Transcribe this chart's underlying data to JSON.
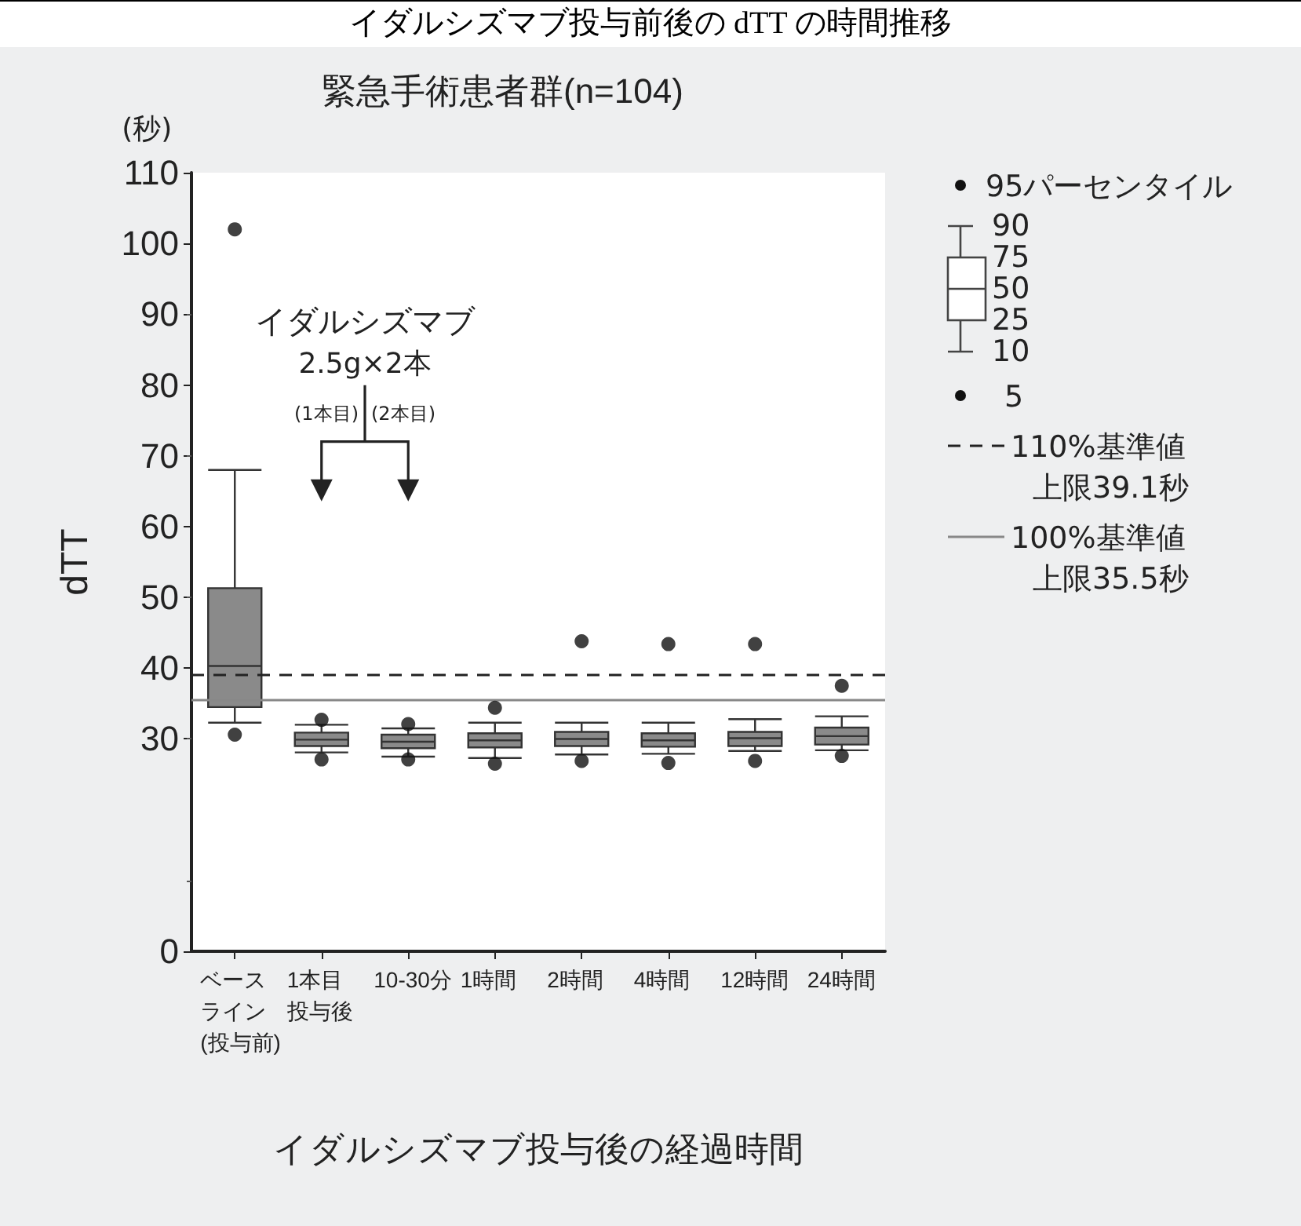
{
  "chart_data": {
    "type": "box",
    "title": "イダルシズマブ投与前後の dTT の時間推移",
    "subtitle": "緊急手術患者群(n=104)",
    "xlabel": "イダルシズマブ投与後の経過時間",
    "ylabel": "dTT",
    "categories": [
      "ベースライン(投与前)",
      "1本目投与後",
      "10-30分",
      "1時間",
      "2時間",
      "4時間",
      "12時間",
      "24時間"
    ],
    "series": [
      {
        "color": "#8a8a8a",
        "boxes": [
          {
            "low": 32.3,
            "q1": 34.5,
            "median": 40.3,
            "q3": 51.3,
            "high": 68,
            "outliers": [
              102,
              30.6
            ]
          },
          {
            "low": 28.1,
            "q1": 29,
            "median": 29.9,
            "q3": 30.9,
            "high": 32,
            "outliers": [
              32.7,
              27.1
            ]
          },
          {
            "low": 27.5,
            "q1": 28.7,
            "median": 29.6,
            "q3": 30.6,
            "high": 31.5,
            "outliers": [
              32.1,
              27.1
            ]
          },
          {
            "low": 27.3,
            "q1": 28.8,
            "median": 29.8,
            "q3": 30.8,
            "high": 32.3,
            "outliers": [
              34.4,
              26.5
            ]
          },
          {
            "low": 27.8,
            "q1": 29,
            "median": 30,
            "q3": 31,
            "high": 32.3,
            "outliers": [
              43.8,
              26.9
            ]
          },
          {
            "low": 27.9,
            "q1": 28.9,
            "median": 29.8,
            "q3": 30.8,
            "high": 32.3,
            "outliers": [
              43.4,
              26.6
            ]
          },
          {
            "low": 28.3,
            "q1": 29,
            "median": 30.1,
            "q3": 31,
            "high": 32.8,
            "outliers": [
              43.4,
              26.9
            ]
          },
          {
            "low": 28.4,
            "q1": 29.2,
            "median": 30.4,
            "q3": 31.6,
            "high": 33.2,
            "outliers": [
              37.5,
              27.6
            ]
          }
        ]
      }
    ],
    "ylim": [
      0,
      110
    ],
    "yticks": [
      0,
      30,
      40,
      50,
      60,
      70,
      80,
      90,
      100,
      110
    ],
    "ref_lines": [
      {
        "axis": "y",
        "value": 39.1,
        "label": "110%基準値上限39.1秒",
        "line_style": "dashed",
        "color": "#222222"
      },
      {
        "axis": "y",
        "value": 35.5,
        "label": "100%基準値上限35.5秒",
        "line_style": "solid",
        "color": "#888888"
      }
    ],
    "annotations": [
      "(秒)",
      "イダルシズマブ",
      "2.5g×2本",
      "(1本目)",
      "(2本目)",
      "95パーセンタイル",
      "90",
      "75",
      "50",
      "25",
      "10",
      "5"
    ],
    "legend": "top right",
    "grid": false
  }
}
